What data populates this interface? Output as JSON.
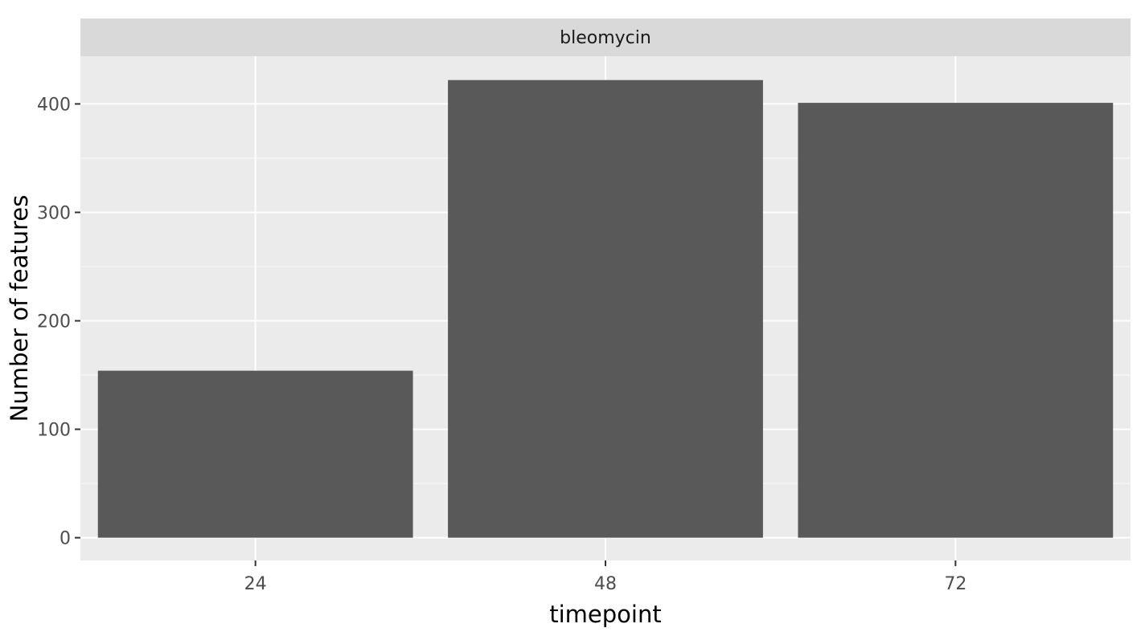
{
  "chart_data": {
    "type": "bar",
    "facet": "bleomycin",
    "categories": [
      "24",
      "48",
      "72"
    ],
    "values": [
      154,
      422,
      401
    ],
    "xlabel": "timepoint",
    "ylabel": "Number of features",
    "ylim": [
      -21,
      444
    ],
    "yticks": [
      0,
      100,
      200,
      300,
      400
    ],
    "grid": true,
    "colors": {
      "bar": "#595959",
      "panel": "#ebebeb",
      "strip": "#d9d9d9",
      "grid": "#ffffff",
      "tick": "#333333"
    }
  }
}
